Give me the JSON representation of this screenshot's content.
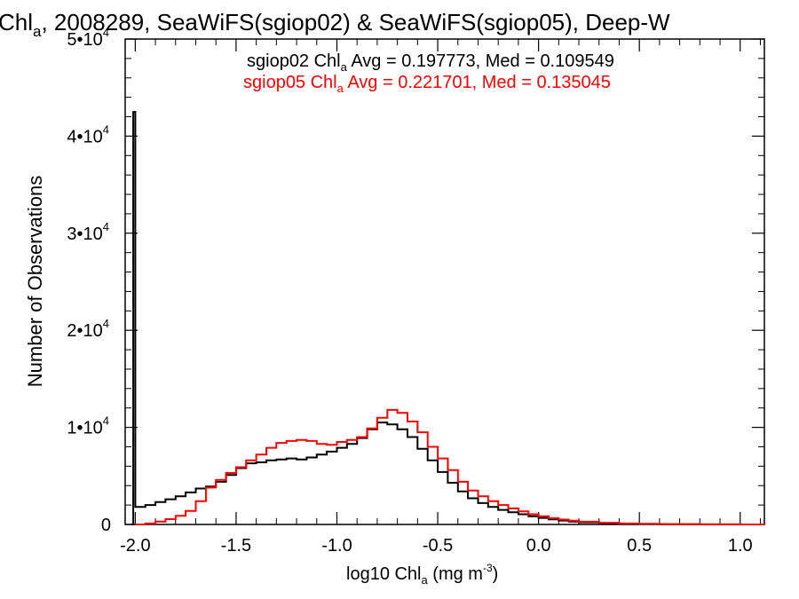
{
  "title": {
    "prefix": "Chl",
    "sub": "a",
    "rest": ", 2008289, SeaWiFS(sgiop02) & SeaWiFS(sgiop05), Deep-W"
  },
  "xlabel": {
    "prefix": "log10 Chl",
    "sub": "a",
    "mid": " (mg m",
    "sup": "-3",
    "end": ")"
  },
  "ylabel": "Number of Observations",
  "annotations": [
    {
      "prefix": "sgiop02 Chl",
      "sub": "a",
      "rest": " Avg = 0.197773, Med = 0.109549",
      "color": "#000000"
    },
    {
      "prefix": "sgiop05 Chl",
      "sub": "a",
      "rest": " Avg = 0.221701, Med = 0.135045",
      "color": "#ff0000"
    }
  ],
  "chart_data": {
    "type": "line",
    "x_ticks": [
      "-2.0",
      "-1.5",
      "-1.0",
      "-0.5",
      "0.0",
      "0.5",
      "1.0"
    ],
    "y_ticks": [
      {
        "value": 0,
        "label": "0"
      },
      {
        "value": 10000,
        "base": "1•10",
        "exp": "4"
      },
      {
        "value": 20000,
        "base": "2•10",
        "exp": "4"
      },
      {
        "value": 30000,
        "base": "3•10",
        "exp": "4"
      },
      {
        "value": 40000,
        "base": "4•10",
        "exp": "4"
      },
      {
        "value": 50000,
        "base": "5•10",
        "exp": "4"
      }
    ],
    "xlim": [
      -2.05,
      1.12
    ],
    "ylim": [
      0,
      50000
    ],
    "grid": false,
    "series": [
      {
        "name": "sgiop02",
        "color": "#000000",
        "points": [
          [
            -2.02,
            0
          ],
          [
            -2.01,
            42500
          ],
          [
            -2.0,
            1800
          ],
          [
            -1.95,
            2000
          ],
          [
            -1.9,
            2300
          ],
          [
            -1.85,
            2600
          ],
          [
            -1.8,
            2900
          ],
          [
            -1.75,
            3300
          ],
          [
            -1.7,
            3700
          ],
          [
            -1.65,
            3900
          ],
          [
            -1.6,
            4400
          ],
          [
            -1.55,
            5100
          ],
          [
            -1.5,
            5800
          ],
          [
            -1.45,
            6300
          ],
          [
            -1.4,
            6400
          ],
          [
            -1.35,
            6600
          ],
          [
            -1.3,
            6700
          ],
          [
            -1.25,
            6800
          ],
          [
            -1.2,
            6700
          ],
          [
            -1.15,
            6900
          ],
          [
            -1.1,
            7200
          ],
          [
            -1.05,
            7500
          ],
          [
            -1.0,
            7900
          ],
          [
            -0.95,
            8300
          ],
          [
            -0.9,
            8900
          ],
          [
            -0.85,
            9800
          ],
          [
            -0.8,
            10500
          ],
          [
            -0.75,
            10300
          ],
          [
            -0.7,
            9800
          ],
          [
            -0.65,
            9000
          ],
          [
            -0.6,
            7800
          ],
          [
            -0.55,
            6600
          ],
          [
            -0.5,
            5400
          ],
          [
            -0.45,
            4300
          ],
          [
            -0.4,
            3400
          ],
          [
            -0.35,
            2700
          ],
          [
            -0.3,
            2200
          ],
          [
            -0.25,
            1800
          ],
          [
            -0.2,
            1500
          ],
          [
            -0.15,
            1250
          ],
          [
            -0.1,
            1050
          ],
          [
            -0.05,
            850
          ],
          [
            0.0,
            680
          ],
          [
            0.05,
            520
          ],
          [
            0.1,
            400
          ],
          [
            0.15,
            300
          ],
          [
            0.2,
            220
          ],
          [
            0.3,
            130
          ],
          [
            0.4,
            80
          ],
          [
            0.5,
            50
          ],
          [
            0.6,
            30
          ],
          [
            0.8,
            10
          ],
          [
            1.0,
            0
          ],
          [
            1.12,
            0
          ]
        ]
      },
      {
        "name": "sgiop05",
        "color": "#ff0000",
        "points": [
          [
            -2.0,
            0
          ],
          [
            -1.95,
            100
          ],
          [
            -1.9,
            300
          ],
          [
            -1.85,
            550
          ],
          [
            -1.8,
            900
          ],
          [
            -1.75,
            1400
          ],
          [
            -1.7,
            2400
          ],
          [
            -1.65,
            3800
          ],
          [
            -1.6,
            4600
          ],
          [
            -1.55,
            5300
          ],
          [
            -1.5,
            5900
          ],
          [
            -1.45,
            6600
          ],
          [
            -1.4,
            7200
          ],
          [
            -1.35,
            7900
          ],
          [
            -1.3,
            8400
          ],
          [
            -1.25,
            8600
          ],
          [
            -1.2,
            8700
          ],
          [
            -1.15,
            8600
          ],
          [
            -1.1,
            8300
          ],
          [
            -1.05,
            8200
          ],
          [
            -1.0,
            8500
          ],
          [
            -0.95,
            8700
          ],
          [
            -0.9,
            9000
          ],
          [
            -0.85,
            9900
          ],
          [
            -0.8,
            11000
          ],
          [
            -0.75,
            11800
          ],
          [
            -0.7,
            11500
          ],
          [
            -0.65,
            10600
          ],
          [
            -0.6,
            9500
          ],
          [
            -0.55,
            8000
          ],
          [
            -0.5,
            6800
          ],
          [
            -0.45,
            5600
          ],
          [
            -0.4,
            4400
          ],
          [
            -0.35,
            3500
          ],
          [
            -0.3,
            2900
          ],
          [
            -0.25,
            2400
          ],
          [
            -0.2,
            2000
          ],
          [
            -0.15,
            1650
          ],
          [
            -0.1,
            1350
          ],
          [
            -0.05,
            1050
          ],
          [
            0.0,
            850
          ],
          [
            0.05,
            650
          ],
          [
            0.1,
            500
          ],
          [
            0.15,
            380
          ],
          [
            0.2,
            280
          ],
          [
            0.3,
            170
          ],
          [
            0.4,
            100
          ],
          [
            0.5,
            60
          ],
          [
            0.6,
            35
          ],
          [
            0.8,
            12
          ],
          [
            1.0,
            0
          ],
          [
            1.12,
            0
          ]
        ]
      }
    ]
  }
}
